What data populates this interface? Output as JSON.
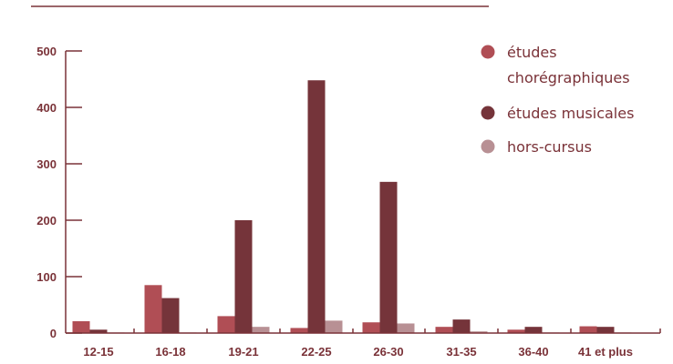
{
  "chart_data": {
    "type": "bar",
    "categories": [
      "12-15",
      "16-18",
      "19-21",
      "22-25",
      "26-30",
      "31-35",
      "36-40",
      "41 et plus"
    ],
    "series": [
      {
        "name": "études chorégraphiques",
        "name_lines": [
          "études",
          "chorégraphiques"
        ],
        "color": "#b04e55",
        "values": [
          21,
          85,
          30,
          9,
          19,
          11,
          6,
          12
        ]
      },
      {
        "name": "études musicales",
        "name_lines": [
          "études musicales"
        ],
        "color": "#75343a",
        "values": [
          6,
          62,
          200,
          448,
          268,
          24,
          11,
          11
        ]
      },
      {
        "name": "hors-cursus",
        "name_lines": [
          "hors-cursus"
        ],
        "color": "#b89094",
        "values": [
          1,
          1,
          11,
          22,
          17,
          3,
          1,
          1
        ]
      }
    ],
    "ylim": [
      0,
      500
    ],
    "yticks": [
      0,
      100,
      200,
      300,
      400,
      500
    ],
    "title": "",
    "xlabel": "",
    "ylabel": "",
    "grid": false,
    "legend": "top-right",
    "colors": {
      "axis": "#7a3238",
      "text": "#7a3238",
      "top_rule": "#7a3238"
    }
  }
}
